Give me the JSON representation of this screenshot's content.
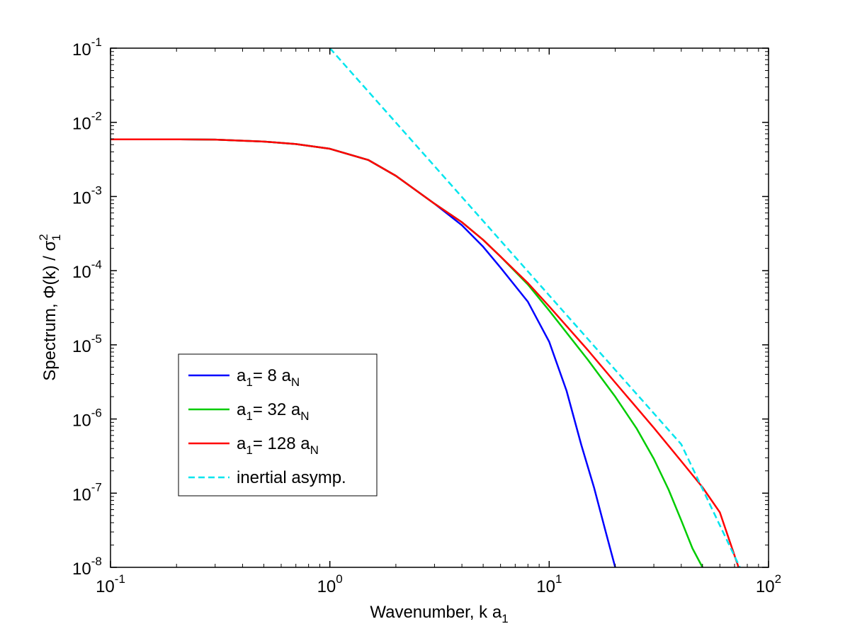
{
  "chart_data": {
    "type": "line",
    "xscale": "log",
    "yscale": "log",
    "xlim": [
      0.1,
      100
    ],
    "ylim": [
      1e-08,
      0.1
    ],
    "grid": false,
    "legend_position": "lower-left",
    "xlabel": {
      "text": "Wavenumber, k a",
      "sub": "1"
    },
    "ylabel": {
      "text": "Spectrum, Φ(k) / σ",
      "sup": "2",
      "sub": "1"
    },
    "x_ticks": [
      {
        "value": 0.1,
        "base": "10",
        "exp": "-1"
      },
      {
        "value": 1,
        "base": "10",
        "exp": "0"
      },
      {
        "value": 10,
        "base": "10",
        "exp": "1"
      },
      {
        "value": 100,
        "base": "10",
        "exp": "2"
      }
    ],
    "y_ticks": [
      {
        "value": 1e-08,
        "base": "10",
        "exp": "-8"
      },
      {
        "value": 1e-07,
        "base": "10",
        "exp": "-7"
      },
      {
        "value": 1e-06,
        "base": "10",
        "exp": "-6"
      },
      {
        "value": 1e-05,
        "base": "10",
        "exp": "-5"
      },
      {
        "value": 0.0001,
        "base": "10",
        "exp": "-4"
      },
      {
        "value": 0.001,
        "base": "10",
        "exp": "-3"
      },
      {
        "value": 0.01,
        "base": "10",
        "exp": "-2"
      },
      {
        "value": 0.1,
        "base": "10",
        "exp": "-1"
      }
    ],
    "series": [
      {
        "name": "a1= 8 aN",
        "legend": {
          "a": "a",
          "a_sub": "1",
          "mid": "= 8 a",
          "n_sub": "N"
        },
        "color": "#0000ff",
        "dash": "solid",
        "x": [
          0.1,
          0.2,
          0.3,
          0.5,
          0.7,
          1.0,
          1.5,
          2.0,
          3.0,
          4.0,
          5.0,
          6.0,
          8.0,
          10.0,
          12.0,
          14.0,
          16.0,
          18.0,
          20.0
        ],
        "y": [
          0.0059,
          0.0059,
          0.00585,
          0.0055,
          0.0051,
          0.0044,
          0.0031,
          0.0019,
          0.0008,
          0.00041,
          0.00021,
          0.00011,
          3.8e-05,
          1.1e-05,
          2.4e-06,
          4.5e-07,
          1.2e-07,
          3.2e-08,
          1e-08
        ]
      },
      {
        "name": "a1= 32 aN",
        "legend": {
          "a": "a",
          "a_sub": "1",
          "mid": "= 32 a",
          "n_sub": "N"
        },
        "color": "#00cc00",
        "dash": "solid",
        "x": [
          0.1,
          0.2,
          0.3,
          0.5,
          0.7,
          1.0,
          1.5,
          2.0,
          3.0,
          4.0,
          5.0,
          6.0,
          8.0,
          10.0,
          15.0,
          20.0,
          25.0,
          30.0,
          35.0,
          40.0,
          45.0,
          50.0
        ],
        "y": [
          0.0059,
          0.0059,
          0.00585,
          0.0055,
          0.0051,
          0.0044,
          0.0031,
          0.0019,
          0.0008,
          0.00045,
          0.00026,
          0.000155,
          6.5e-05,
          2.9e-05,
          6.3e-06,
          2e-06,
          7.5e-07,
          2.9e-07,
          1.12e-07,
          4.3e-08,
          1.8e-08,
          1e-08
        ]
      },
      {
        "name": "a1= 128 aN",
        "legend": {
          "a": "a",
          "a_sub": "1",
          "mid": "= 128 a",
          "n_sub": "N"
        },
        "color": "#ff0000",
        "dash": "solid",
        "x": [
          0.1,
          0.2,
          0.3,
          0.5,
          0.7,
          1.0,
          1.5,
          2.0,
          3.0,
          4.0,
          5.0,
          6.0,
          8.0,
          10.0,
          15.0,
          20.0,
          30.0,
          40.0,
          50.0,
          60.0,
          73.0
        ],
        "y": [
          0.0059,
          0.0059,
          0.00585,
          0.0055,
          0.0051,
          0.0044,
          0.0031,
          0.0019,
          0.0008,
          0.00045,
          0.00026,
          0.000155,
          6.8e-05,
          3.3e-05,
          8.5e-06,
          3.1e-06,
          7.6e-07,
          2.7e-07,
          1.2e-07,
          5.5e-08,
          1e-08
        ]
      },
      {
        "name": "inertial asymp.",
        "legend": {
          "text": "inertial asymp."
        },
        "color": "#00e5ee",
        "dash": "dashed",
        "x": [
          1.0,
          2.0,
          4.0,
          10.0,
          20.0,
          40.0,
          74.0
        ],
        "y": [
          0.1,
          0.00992,
          0.000984,
          4.64e-05,
          4.6e-06,
          4.56e-07,
          1e-08
        ]
      }
    ]
  }
}
